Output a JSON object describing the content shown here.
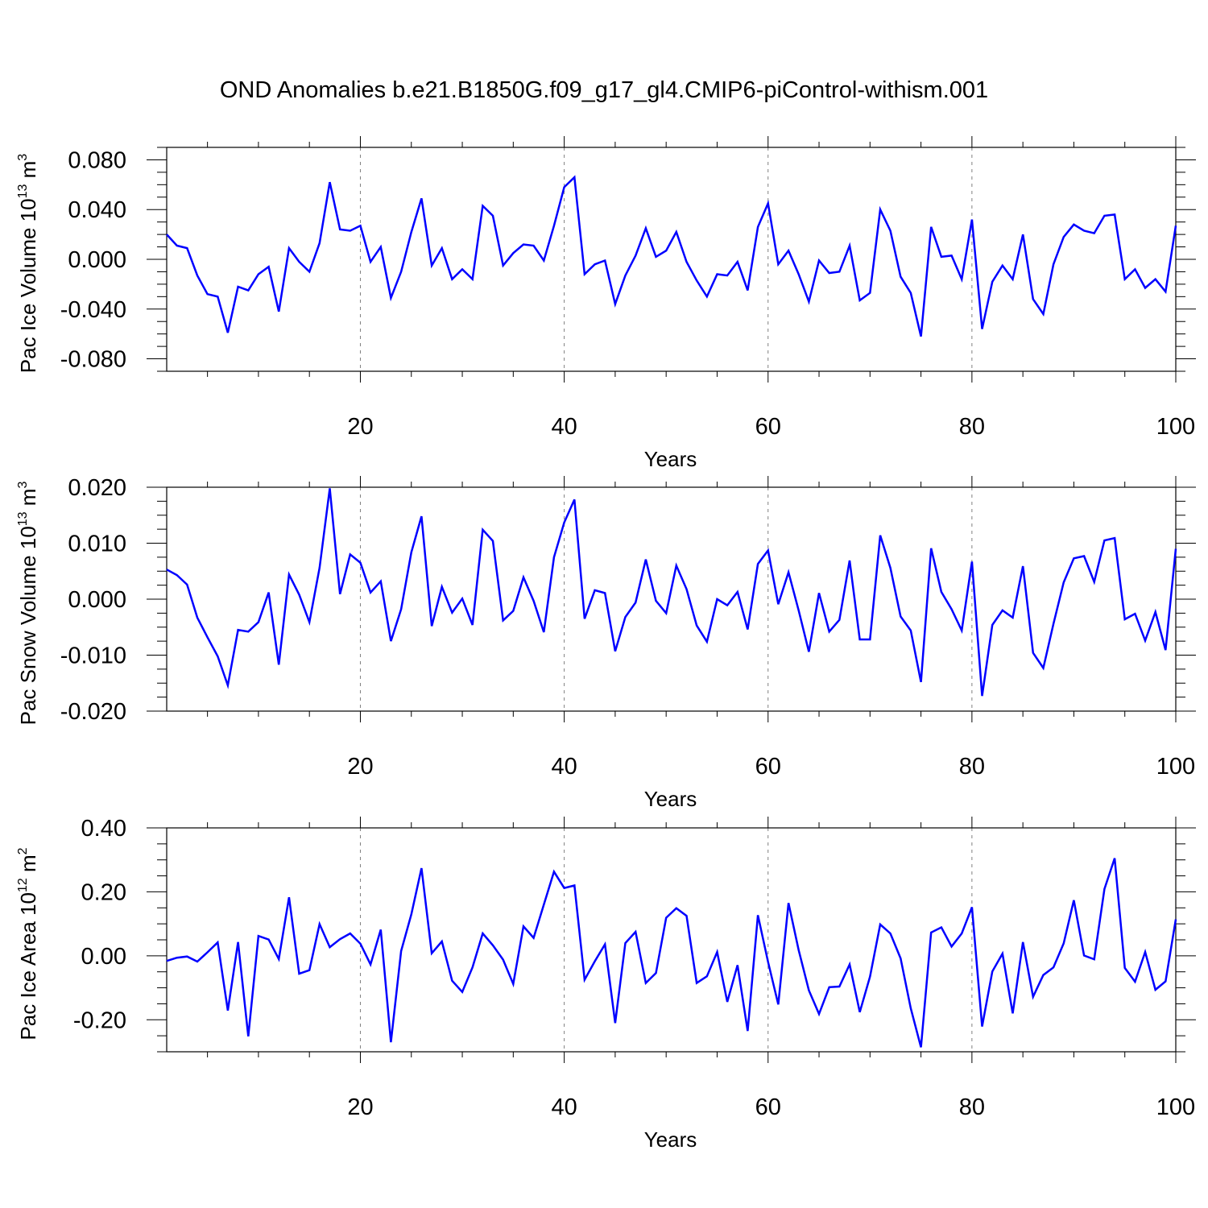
{
  "title": "OND Anomalies b.e21.B1850G.f09_g17_gl4.CMIP6-piControl-withism.001",
  "colors": {
    "line": "#0000ff",
    "axis": "#000000",
    "gridline": "#808080"
  },
  "chart_data": [
    {
      "type": "line",
      "xlabel": "Years",
      "ylabel": {
        "text": "Pac Ice Volume 10",
        "sup": "13",
        "unit": " m",
        "unit_sup": "3"
      },
      "xlim": [
        1,
        100
      ],
      "ylim": [
        -0.09,
        0.09
      ],
      "x_ticks": [
        20,
        40,
        60,
        80,
        100
      ],
      "x_tick_labels": [
        "20",
        "40",
        "60",
        "80",
        "100"
      ],
      "y_ticks": [
        0.08,
        0.04,
        0.0,
        -0.04,
        -0.08
      ],
      "y_tick_labels": [
        "0.080",
        "0.040",
        "0.000",
        "-0.040",
        "-0.080"
      ],
      "y_minor_step": 0.01,
      "grid": "dashed vertical at major x ticks",
      "series": [
        {
          "color": "#0000ff",
          "x_start": 1,
          "values": [
            0.02,
            0.011,
            0.009,
            -0.013,
            -0.028,
            -0.03,
            -0.059,
            -0.022,
            -0.025,
            -0.012,
            -0.006,
            -0.042,
            0.009,
            -0.002,
            -0.01,
            0.013,
            0.062,
            0.024,
            0.023,
            0.027,
            -0.002,
            0.01,
            -0.031,
            -0.01,
            0.022,
            0.049,
            -0.005,
            0.009,
            -0.016,
            -0.008,
            -0.016,
            0.043,
            0.035,
            -0.005,
            0.005,
            0.012,
            0.011,
            -0.001,
            0.027,
            0.058,
            0.066,
            -0.012,
            -0.004,
            -0.001,
            -0.036,
            -0.013,
            0.003,
            0.025,
            0.002,
            0.007,
            0.022,
            -0.002,
            -0.017,
            -0.03,
            -0.012,
            -0.013,
            -0.002,
            -0.025,
            0.026,
            0.045,
            -0.004,
            0.007,
            -0.012,
            -0.034,
            -0.001,
            -0.011,
            -0.01,
            0.011,
            -0.033,
            -0.027,
            0.04,
            0.023,
            -0.014,
            -0.027,
            -0.062,
            0.026,
            0.002,
            0.003,
            -0.016,
            0.032,
            -0.056,
            -0.018,
            -0.005,
            -0.016,
            0.02,
            -0.032,
            -0.044,
            -0.004,
            0.018,
            0.028,
            0.023,
            0.021,
            0.035,
            0.036,
            -0.016,
            -0.008,
            -0.023,
            -0.016,
            -0.026,
            0.027
          ]
        }
      ]
    },
    {
      "type": "line",
      "xlabel": "Years",
      "ylabel": {
        "text": "Pac Snow Volume 10",
        "sup": "13",
        "unit": " m",
        "unit_sup": "3"
      },
      "xlim": [
        1,
        100
      ],
      "ylim": [
        -0.02,
        0.02
      ],
      "x_ticks": [
        20,
        40,
        60,
        80,
        100
      ],
      "x_tick_labels": [
        "20",
        "40",
        "60",
        "80",
        "100"
      ],
      "y_ticks": [
        0.02,
        0.01,
        0.0,
        -0.01,
        -0.02
      ],
      "y_tick_labels": [
        "0.020",
        "0.010",
        "0.000",
        "-0.010",
        "-0.020"
      ],
      "y_minor_step": 0.0025,
      "grid": "dashed vertical at major x ticks",
      "series": [
        {
          "color": "#0000ff",
          "x_start": 1,
          "values": [
            0.0053,
            0.0043,
            0.0026,
            -0.0033,
            -0.0068,
            -0.0102,
            -0.0154,
            -0.0055,
            -0.0058,
            -0.0041,
            0.0012,
            -0.0117,
            0.0044,
            0.0008,
            -0.0041,
            0.0056,
            0.0198,
            0.0009,
            0.008,
            0.0065,
            0.0012,
            0.0032,
            -0.0075,
            -0.0018,
            0.0084,
            0.0148,
            -0.0048,
            0.0022,
            -0.0024,
            0.0001,
            -0.0046,
            0.0124,
            0.0104,
            -0.0038,
            -0.0021,
            0.0039,
            -0.0003,
            -0.0059,
            0.0075,
            0.0137,
            0.0178,
            -0.0035,
            0.0016,
            0.0011,
            -0.0093,
            -0.0032,
            -0.0006,
            0.0071,
            -0.0003,
            -0.0025,
            0.006,
            0.0018,
            -0.0047,
            -0.0076,
            0.0,
            -0.0011,
            0.0013,
            -0.0054,
            0.0063,
            0.0087,
            -0.0009,
            0.0048,
            -0.002,
            -0.0094,
            0.0011,
            -0.0058,
            -0.0037,
            0.0069,
            -0.0072,
            -0.0072,
            0.0114,
            0.0056,
            -0.0031,
            -0.0056,
            -0.0148,
            0.0091,
            0.0013,
            -0.0018,
            -0.0056,
            0.0067,
            -0.0173,
            -0.0046,
            -0.002,
            -0.0033,
            0.0059,
            -0.0096,
            -0.0123,
            -0.0044,
            0.003,
            0.0073,
            0.0077,
            0.0031,
            0.0105,
            0.0109,
            -0.0036,
            -0.0026,
            -0.0074,
            -0.0023,
            -0.0091,
            0.009
          ]
        }
      ]
    },
    {
      "type": "line",
      "xlabel": "Years",
      "ylabel": {
        "text": "Pac Ice Area 10",
        "sup": "12",
        "unit": " m",
        "unit_sup": "2"
      },
      "xlim": [
        1,
        100
      ],
      "ylim": [
        -0.3,
        0.4
      ],
      "x_ticks": [
        20,
        40,
        60,
        80,
        100
      ],
      "x_tick_labels": [
        "20",
        "40",
        "60",
        "80",
        "100"
      ],
      "y_ticks": [
        0.4,
        0.2,
        0.0,
        -0.2
      ],
      "y_tick_labels": [
        "0.40",
        "0.20",
        "0.00",
        "-0.20"
      ],
      "y_minor_step": 0.05,
      "grid": "dashed vertical at major x ticks",
      "series": [
        {
          "color": "#0000ff",
          "x_start": 1,
          "values": [
            -0.016,
            -0.006,
            -0.002,
            -0.018,
            0.011,
            0.042,
            -0.171,
            0.043,
            -0.252,
            0.062,
            0.051,
            -0.01,
            0.183,
            -0.056,
            -0.045,
            0.099,
            0.027,
            0.052,
            0.07,
            0.038,
            -0.027,
            0.082,
            -0.27,
            0.015,
            0.13,
            0.274,
            0.008,
            0.045,
            -0.078,
            -0.113,
            -0.036,
            0.07,
            0.033,
            -0.012,
            -0.088,
            0.092,
            0.056,
            0.16,
            0.263,
            0.212,
            0.22,
            -0.075,
            -0.017,
            0.036,
            -0.21,
            0.04,
            0.075,
            -0.085,
            -0.054,
            0.119,
            0.149,
            0.125,
            -0.085,
            -0.064,
            0.012,
            -0.144,
            -0.029,
            -0.235,
            0.127,
            -0.019,
            -0.152,
            0.165,
            0.018,
            -0.108,
            -0.182,
            -0.098,
            -0.096,
            -0.027,
            -0.176,
            -0.065,
            0.098,
            0.07,
            -0.008,
            -0.164,
            -0.286,
            0.073,
            0.089,
            0.029,
            0.07,
            0.152,
            -0.221,
            -0.049,
            0.007,
            -0.18,
            0.043,
            -0.128,
            -0.06,
            -0.036,
            0.039,
            0.174,
            0.001,
            -0.011,
            0.209,
            0.305,
            -0.038,
            -0.081,
            0.012,
            -0.106,
            -0.08,
            0.114
          ]
        }
      ]
    }
  ]
}
